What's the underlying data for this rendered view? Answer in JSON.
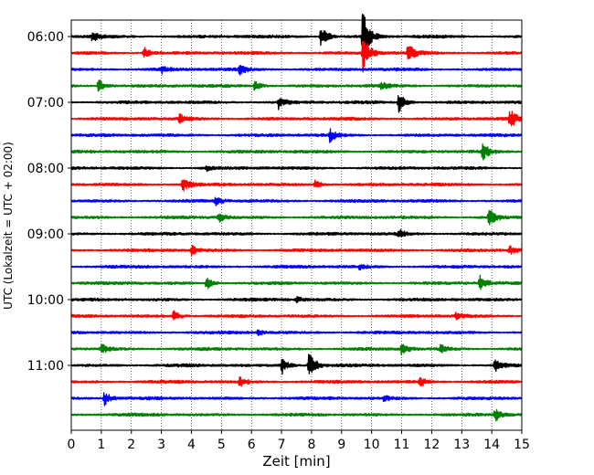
{
  "chart_data": {
    "type": "line",
    "title": "",
    "xlabel": "Zeit  [min]",
    "ylabel": "UTC (Lokalzeit = UTC + 02:00)",
    "xlim": [
      0,
      15
    ],
    "x_ticks": [
      0,
      1,
      2,
      3,
      4,
      5,
      6,
      7,
      8,
      9,
      10,
      11,
      12,
      13,
      14,
      15
    ],
    "y_ticks": [
      "06:00",
      "07:00",
      "08:00",
      "09:00",
      "10:00",
      "11:00"
    ],
    "grid": "vertical dotted",
    "trace_colors": [
      "#000000",
      "#ff0000",
      "#0000ff",
      "#008000"
    ],
    "traces": [
      {
        "start": "06:00",
        "events": [
          [
            0.7,
            0.4
          ],
          [
            8.3,
            1.0
          ],
          [
            9.7,
            2.2
          ]
        ]
      },
      {
        "start": "06:15",
        "events": [
          [
            2.4,
            0.5
          ],
          [
            9.7,
            1.6
          ],
          [
            11.2,
            0.8
          ]
        ]
      },
      {
        "start": "06:30",
        "events": [
          [
            5.6,
            0.4
          ],
          [
            3.0,
            0.3
          ]
        ]
      },
      {
        "start": "06:45",
        "events": [
          [
            0.9,
            0.6
          ],
          [
            6.1,
            0.4
          ],
          [
            10.3,
            0.3
          ]
        ]
      },
      {
        "start": "07:00",
        "events": [
          [
            6.9,
            0.5
          ],
          [
            10.9,
            0.8
          ]
        ]
      },
      {
        "start": "07:15",
        "events": [
          [
            3.6,
            0.4
          ],
          [
            14.6,
            0.8
          ]
        ]
      },
      {
        "start": "07:30",
        "events": [
          [
            8.6,
            0.5
          ]
        ]
      },
      {
        "start": "07:45",
        "events": [
          [
            13.7,
            0.7
          ]
        ]
      },
      {
        "start": "08:00",
        "events": [
          [
            4.5,
            0.2
          ]
        ]
      },
      {
        "start": "08:15",
        "events": [
          [
            3.7,
            0.7
          ],
          [
            8.1,
            0.4
          ]
        ]
      },
      {
        "start": "08:30",
        "events": [
          [
            4.8,
            0.3
          ]
        ]
      },
      {
        "start": "08:45",
        "events": [
          [
            4.9,
            0.4
          ],
          [
            13.9,
            0.7
          ]
        ]
      },
      {
        "start": "09:00",
        "events": [
          [
            10.9,
            0.4
          ]
        ]
      },
      {
        "start": "09:15",
        "events": [
          [
            4.0,
            0.4
          ],
          [
            14.6,
            0.3
          ]
        ]
      },
      {
        "start": "09:30",
        "events": [
          [
            9.6,
            0.2
          ]
        ]
      },
      {
        "start": "09:45",
        "events": [
          [
            4.5,
            0.5
          ],
          [
            13.6,
            0.6
          ]
        ]
      },
      {
        "start": "10:00",
        "events": [
          [
            7.5,
            0.2
          ]
        ]
      },
      {
        "start": "10:15",
        "events": [
          [
            3.4,
            0.5
          ],
          [
            12.8,
            0.3
          ]
        ]
      },
      {
        "start": "10:30",
        "events": [
          [
            6.2,
            0.2
          ]
        ]
      },
      {
        "start": "10:45",
        "events": [
          [
            1.0,
            0.4
          ],
          [
            11.0,
            0.5
          ],
          [
            12.3,
            0.3
          ]
        ]
      },
      {
        "start": "11:00",
        "events": [
          [
            7.0,
            0.7
          ],
          [
            7.9,
            1.2
          ],
          [
            14.1,
            0.5
          ]
        ]
      },
      {
        "start": "11:15",
        "events": [
          [
            5.6,
            0.4
          ],
          [
            11.6,
            0.4
          ]
        ]
      },
      {
        "start": "11:30",
        "events": [
          [
            1.1,
            0.6
          ],
          [
            10.4,
            0.2
          ]
        ]
      },
      {
        "start": "11:45",
        "events": [
          [
            14.1,
            0.5
          ]
        ]
      }
    ]
  }
}
